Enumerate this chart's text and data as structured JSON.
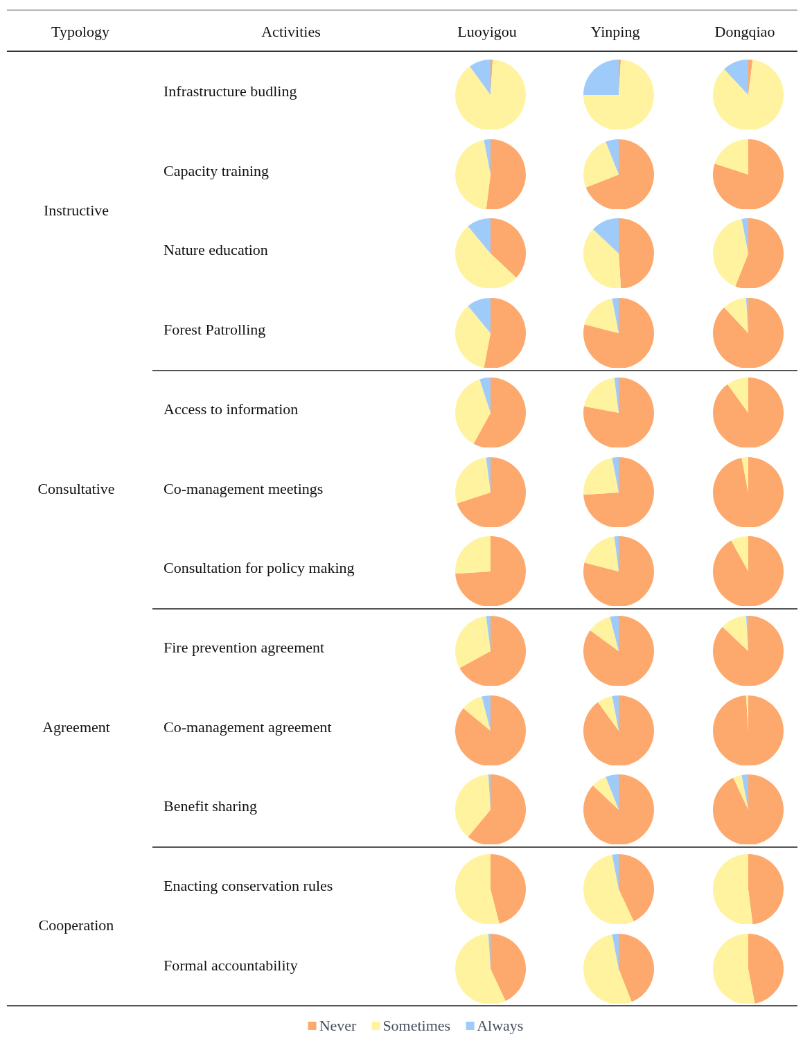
{
  "chart_data": [
    {
      "type": "pie",
      "categories": [
        "Never",
        "Sometimes",
        "Always"
      ],
      "values": [
        1,
        89,
        10
      ],
      "colors": [
        "#fda96d",
        "#fff39f",
        "#9fcbfa"
      ],
      "legend": "bottom",
      "annotations": [
        "Typology",
        "Activities",
        "Luoyigou",
        "Instructive",
        "Infrastructure budling"
      ]
    },
    {
      "type": "pie",
      "values": [
        1,
        74,
        25
      ],
      "colors": [
        "#fda96d",
        "#fff39f",
        "#9fcbfa"
      ],
      "annotations": [
        "Yinping"
      ]
    },
    {
      "type": "pie",
      "values": [
        2,
        86,
        12
      ],
      "colors": [
        "#fda96d",
        "#fff39f",
        "#9fcbfa"
      ],
      "annotations": [
        "Dongqiao"
      ]
    },
    {
      "type": "pie",
      "values": [
        52,
        45,
        3
      ],
      "colors": [
        "#fda96d",
        "#fff39f",
        "#9fcbfa"
      ],
      "annotations": [
        "Capacity training"
      ]
    },
    {
      "type": "pie",
      "values": [
        69,
        25,
        6
      ],
      "colors": [
        "#fda96d",
        "#fff39f",
        "#9fcbfa"
      ]
    },
    {
      "type": "pie",
      "values": [
        80,
        20,
        0
      ],
      "colors": [
        "#fda96d",
        "#fff39f",
        "#9fcbfa"
      ]
    },
    {
      "type": "pie",
      "values": [
        37,
        52,
        11
      ],
      "colors": [
        "#fda96d",
        "#fff39f",
        "#9fcbfa"
      ],
      "annotations": [
        "Nature education"
      ]
    },
    {
      "type": "pie",
      "values": [
        49,
        38,
        13
      ],
      "colors": [
        "#fda96d",
        "#fff39f",
        "#9fcbfa"
      ]
    },
    {
      "type": "pie",
      "values": [
        56,
        41,
        3
      ],
      "colors": [
        "#fda96d",
        "#fff39f",
        "#9fcbfa"
      ]
    },
    {
      "type": "pie",
      "values": [
        53,
        36,
        11
      ],
      "colors": [
        "#fda96d",
        "#fff39f",
        "#9fcbfa"
      ],
      "annotations": [
        "Forest Patrolling"
      ]
    },
    {
      "type": "pie",
      "values": [
        79,
        18,
        3
      ],
      "colors": [
        "#fda96d",
        "#fff39f",
        "#9fcbfa"
      ]
    },
    {
      "type": "pie",
      "values": [
        88,
        11,
        1
      ],
      "colors": [
        "#fda96d",
        "#fff39f",
        "#9fcbfa"
      ]
    },
    {
      "type": "pie",
      "values": [
        58,
        37,
        5
      ],
      "colors": [
        "#fda96d",
        "#fff39f",
        "#9fcbfa"
      ],
      "annotations": [
        "Consultative",
        "Access to information"
      ]
    },
    {
      "type": "pie",
      "values": [
        78,
        20,
        2
      ],
      "colors": [
        "#fda96d",
        "#fff39f",
        "#9fcbfa"
      ]
    },
    {
      "type": "pie",
      "values": [
        90,
        10,
        0
      ],
      "colors": [
        "#fda96d",
        "#fff39f",
        "#9fcbfa"
      ]
    },
    {
      "type": "pie",
      "values": [
        70,
        28,
        2
      ],
      "colors": [
        "#fda96d",
        "#fff39f",
        "#9fcbfa"
      ],
      "annotations": [
        "Co-management meetings"
      ]
    },
    {
      "type": "pie",
      "values": [
        74,
        23,
        3
      ],
      "colors": [
        "#fda96d",
        "#fff39f",
        "#9fcbfa"
      ]
    },
    {
      "type": "pie",
      "values": [
        97,
        3,
        0
      ],
      "colors": [
        "#fda96d",
        "#fff39f",
        "#9fcbfa"
      ]
    },
    {
      "type": "pie",
      "values": [
        74,
        26,
        0
      ],
      "colors": [
        "#fda96d",
        "#fff39f",
        "#9fcbfa"
      ],
      "annotations": [
        "Consultation for policy making"
      ]
    },
    {
      "type": "pie",
      "values": [
        79,
        19,
        2
      ],
      "colors": [
        "#fda96d",
        "#fff39f",
        "#9fcbfa"
      ]
    },
    {
      "type": "pie",
      "values": [
        92,
        8,
        0
      ],
      "colors": [
        "#fda96d",
        "#fff39f",
        "#9fcbfa"
      ]
    },
    {
      "type": "pie",
      "values": [
        67,
        31,
        2
      ],
      "colors": [
        "#fda96d",
        "#fff39f",
        "#9fcbfa"
      ],
      "annotations": [
        "Agreement",
        "Fire prevention agreement"
      ]
    },
    {
      "type": "pie",
      "values": [
        85,
        11,
        4
      ],
      "colors": [
        "#fda96d",
        "#fff39f",
        "#9fcbfa"
      ]
    },
    {
      "type": "pie",
      "values": [
        87,
        12,
        1
      ],
      "colors": [
        "#fda96d",
        "#fff39f",
        "#9fcbfa"
      ]
    },
    {
      "type": "pie",
      "values": [
        86,
        10,
        4
      ],
      "colors": [
        "#fda96d",
        "#fff39f",
        "#9fcbfa"
      ],
      "annotations": [
        "Co-management agreement"
      ]
    },
    {
      "type": "pie",
      "values": [
        90,
        7,
        3
      ],
      "colors": [
        "#fda96d",
        "#fff39f",
        "#9fcbfa"
      ]
    },
    {
      "type": "pie",
      "values": [
        99,
        1,
        0
      ],
      "colors": [
        "#fda96d",
        "#fff39f",
        "#9fcbfa"
      ]
    },
    {
      "type": "pie",
      "values": [
        61,
        38,
        1
      ],
      "colors": [
        "#fda96d",
        "#fff39f",
        "#9fcbfa"
      ],
      "annotations": [
        "Benefit sharing"
      ]
    },
    {
      "type": "pie",
      "values": [
        87,
        7,
        6
      ],
      "colors": [
        "#fda96d",
        "#fff39f",
        "#9fcbfa"
      ]
    },
    {
      "type": "pie",
      "values": [
        93,
        4,
        3
      ],
      "colors": [
        "#fda96d",
        "#fff39f",
        "#9fcbfa"
      ]
    },
    {
      "type": "pie",
      "values": [
        46,
        54,
        0
      ],
      "colors": [
        "#fda96d",
        "#fff39f",
        "#9fcbfa"
      ],
      "annotations": [
        "Cooperation",
        "Enacting conservation rules"
      ]
    },
    {
      "type": "pie",
      "values": [
        43,
        54,
        3
      ],
      "colors": [
        "#fda96d",
        "#fff39f",
        "#9fcbfa"
      ]
    },
    {
      "type": "pie",
      "values": [
        48,
        52,
        0
      ],
      "colors": [
        "#fda96d",
        "#fff39f",
        "#9fcbfa"
      ]
    },
    {
      "type": "pie",
      "values": [
        43,
        56,
        1
      ],
      "colors": [
        "#fda96d",
        "#fff39f",
        "#9fcbfa"
      ],
      "annotations": [
        "Formal accountability"
      ]
    },
    {
      "type": "pie",
      "values": [
        44,
        53,
        3
      ],
      "colors": [
        "#fda96d",
        "#fff39f",
        "#9fcbfa"
      ]
    },
    {
      "type": "pie",
      "values": [
        47,
        53,
        0
      ],
      "colors": [
        "#fda96d",
        "#fff39f",
        "#9fcbfa"
      ]
    }
  ]
}
